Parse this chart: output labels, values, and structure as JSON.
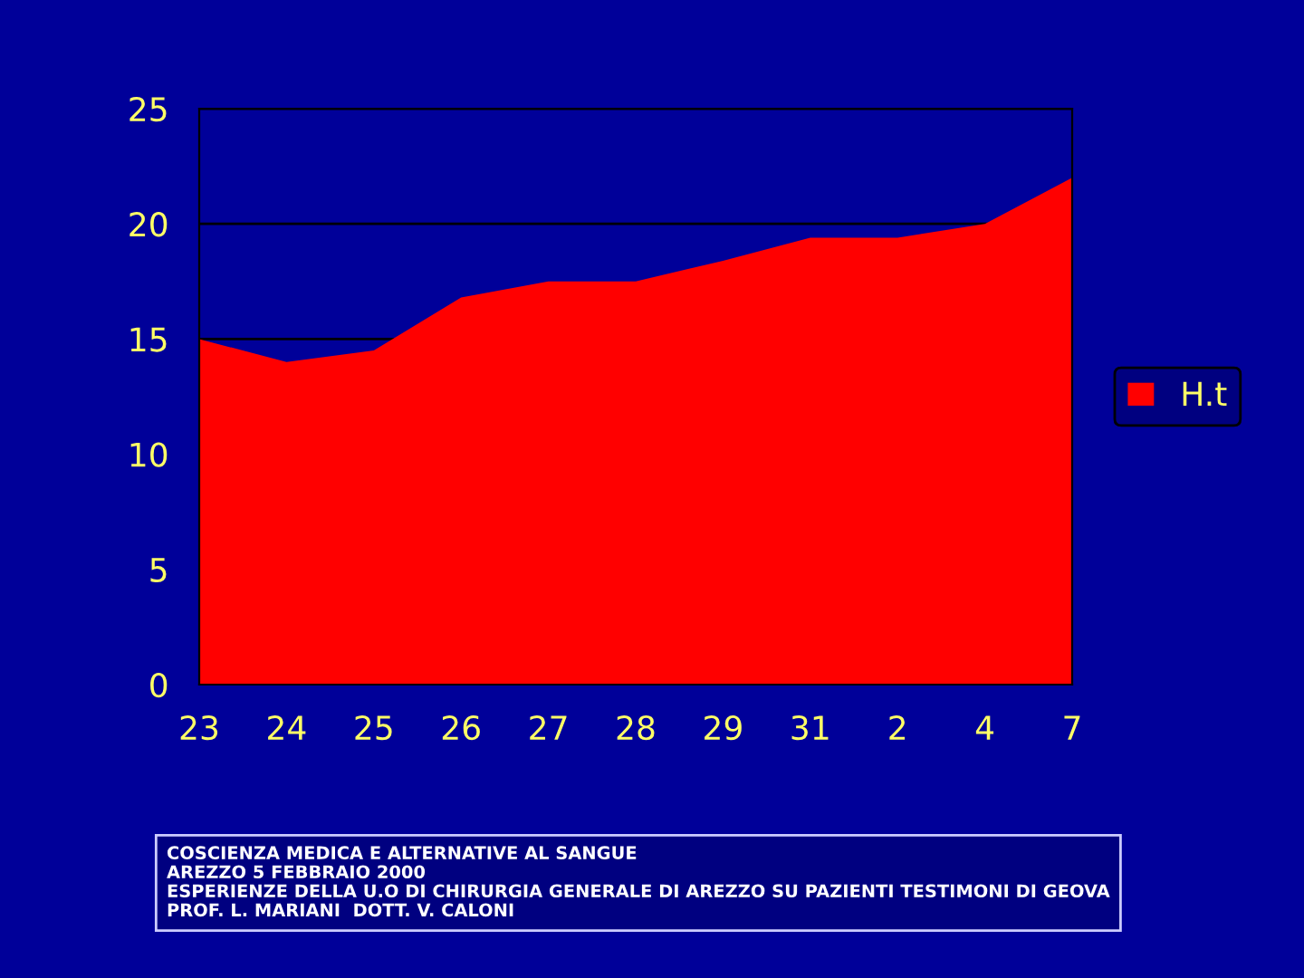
{
  "chart_data": {
    "type": "area",
    "categories": [
      "23",
      "24",
      "25",
      "26",
      "27",
      "28",
      "29",
      "31",
      "2",
      "4",
      "7"
    ],
    "series": [
      {
        "name": "H.t",
        "color": "#ff0000",
        "values": [
          15,
          14,
          14.5,
          16.8,
          17.5,
          17.5,
          18.4,
          19.4,
          19.4,
          20,
          22
        ]
      }
    ],
    "ylim": [
      0,
      25
    ],
    "yticks": [
      0,
      5,
      10,
      15,
      20,
      25
    ],
    "grid": "y",
    "legend": "right",
    "annotations": [
      "COSCIENZA MEDICA E ALTERNATIVE AL SANGUE\nAREZZO 5 FEBBRAIO 2000\nESPERIENZE DELLA U.O DI CHIRURGIA GENERALE DI AREZZO SU PAZIENTI TESTIMONI DI GEOVA\nPROF. L. MARIANI  DOTT. V. CALONI"
    ]
  }
}
